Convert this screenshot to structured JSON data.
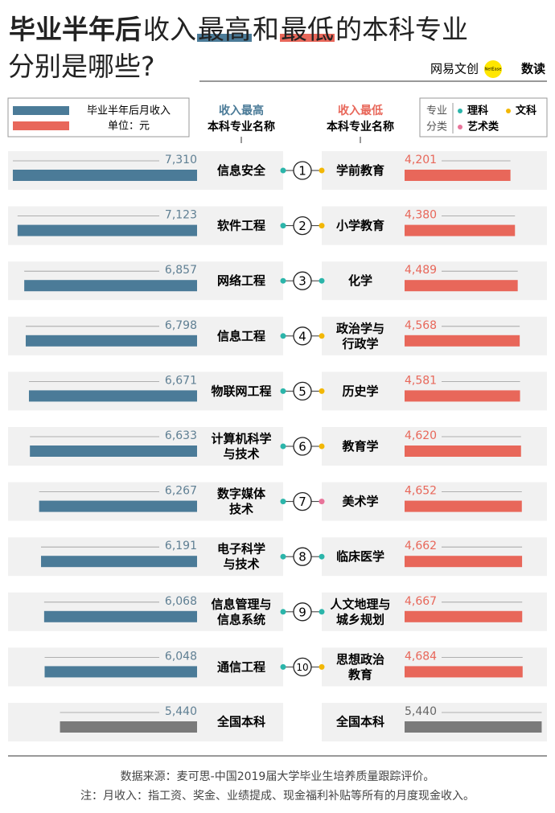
{
  "chart_data": {
    "type": "butterfly-bar",
    "title": [
      {
        "text": "毕业半年后",
        "bold": true
      },
      {
        "text": "收入"
      },
      {
        "text": "最高",
        "underline": "#4b7b98"
      },
      {
        "text": "和"
      },
      {
        "text": "最低",
        "underline": "#e8675a"
      },
      {
        "text": "的本科专业"
      }
    ],
    "subtitle": "分别是哪些?",
    "brand": [
      "网易文创",
      "NetEase",
      "数读"
    ],
    "legend": {
      "label": "毕业半年后月收入",
      "unit": "单位：元"
    },
    "classes": {
      "label": [
        "专业",
        "分类"
      ],
      "items": [
        {
          "name": "理科",
          "color": "#2bb5aa"
        },
        {
          "name": "文科",
          "color": "#f2b705"
        },
        {
          "name": "艺术类",
          "color": "#e8749a"
        }
      ]
    },
    "ranks": [
      "1",
      "2",
      "3",
      "4",
      "5",
      "6",
      "7",
      "8",
      "9",
      "10"
    ],
    "xlim": [
      0,
      7500
    ],
    "series": [
      {
        "name": "收入最高",
        "label": "本科专业名称",
        "color": "#4b7b98",
        "categories": [
          [
            "信息安全"
          ],
          [
            "软件工程"
          ],
          [
            "网络工程"
          ],
          [
            "信息工程"
          ],
          [
            "物联网工程"
          ],
          [
            "计算机科学",
            "与技术"
          ],
          [
            "数字媒体",
            "技术"
          ],
          [
            "电子科学",
            "与技术"
          ],
          [
            "信息管理与",
            "信息系统"
          ],
          [
            "通信工程"
          ]
        ],
        "values": [
          7310,
          7123,
          6857,
          6798,
          6671,
          6633,
          6267,
          6191,
          6068,
          6048
        ],
        "value_labels": [
          "7,310",
          "7,123",
          "6,857",
          "6,798",
          "6,671",
          "6,633",
          "6,267",
          "6,191",
          "6,068",
          "6,048"
        ],
        "dot_colors": [
          "#2bb5aa",
          "#2bb5aa",
          "#2bb5aa",
          "#2bb5aa",
          "#2bb5aa",
          "#2bb5aa",
          "#2bb5aa",
          "#2bb5aa",
          "#2bb5aa",
          "#2bb5aa"
        ]
      },
      {
        "name": "收入最低",
        "label": "本科专业名称",
        "color": "#e8675a",
        "categories": [
          [
            "学前教育"
          ],
          [
            "小学教育"
          ],
          [
            "化学"
          ],
          [
            "政治学与",
            "行政学"
          ],
          [
            "历史学"
          ],
          [
            "教育学"
          ],
          [
            "美术学"
          ],
          [
            "临床医学"
          ],
          [
            "人文地理与",
            "城乡规划"
          ],
          [
            "思想政治",
            "教育"
          ]
        ],
        "values": [
          4201,
          4380,
          4489,
          4568,
          4581,
          4620,
          4652,
          4662,
          4667,
          4684
        ],
        "value_labels": [
          "4,201",
          "4,380",
          "4,489",
          "4,568",
          "4,581",
          "4,620",
          "4,652",
          "4,662",
          "4,667",
          "4,684"
        ],
        "dot_colors": [
          "#f2b705",
          "#f2b705",
          "#2bb5aa",
          "#f2b705",
          "#f2b705",
          "#f2b705",
          "#e8749a",
          "#2bb5aa",
          "#2bb5aa",
          "#f2b705"
        ]
      }
    ],
    "baseline": {
      "names": [
        "全国本科",
        "全国本科"
      ],
      "color": "#7a7a7a",
      "values": [
        5440,
        5440
      ],
      "value_labels": [
        "5,440",
        "5,440"
      ]
    },
    "footer": [
      "数据来源：麦可思-中国2019届大学毕业生培养质量跟踪评价。",
      "注：月收入：指工资、奖金、业绩提成、现金福利补贴等所有的月度现金收入。"
    ]
  }
}
